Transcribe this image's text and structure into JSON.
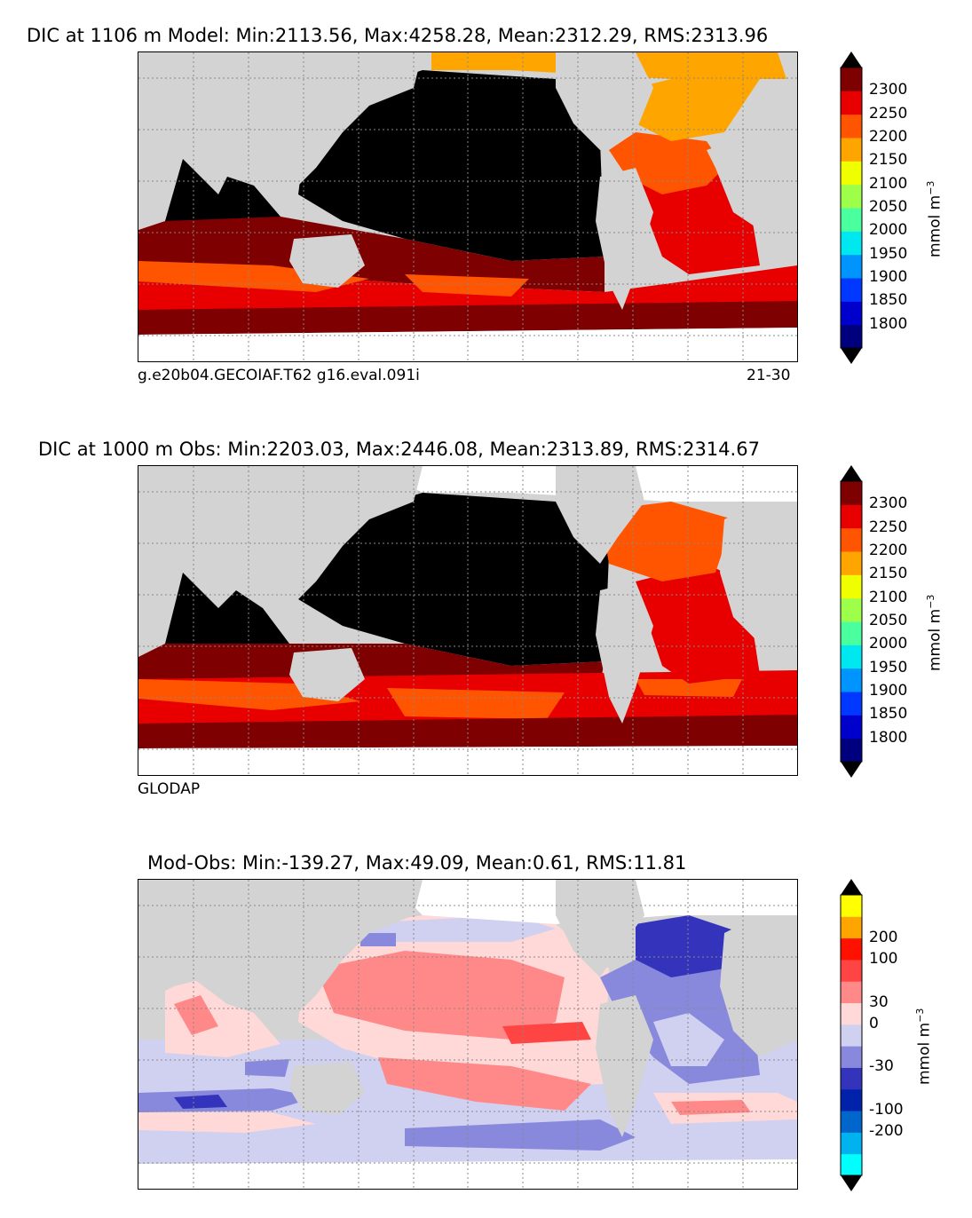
{
  "panels": [
    {
      "id": "model",
      "title": "DIC at 1106 m Model: Min:2113.56, Max:4258.28, Mean:2312.29, RMS:2313.96",
      "left_caption": "g.e20b04.GECOIAF.T62 g16.eval.091i",
      "right_caption": "21-30",
      "units": "mmol m",
      "units_exp": "−3",
      "colorbar": {
        "colors": [
          "#00007f",
          "#0000cc",
          "#0038ff",
          "#0094ff",
          "#00e8ef",
          "#4aff9d",
          "#9dff4a",
          "#efff00",
          "#ffa500",
          "#ff5500",
          "#e80000",
          "#7f0000"
        ],
        "tick_labels": [
          "1800",
          "1850",
          "1900",
          "1950",
          "2000",
          "2050",
          "2100",
          "2150",
          "2200",
          "2250",
          "2300"
        ],
        "over_color": "#000000",
        "under_color": "#000000"
      }
    },
    {
      "id": "obs",
      "title": "DIC at 1000 m Obs: Min:2203.03, Max:2446.08, Mean:2313.89, RMS:2314.67",
      "left_caption": "GLODAP",
      "right_caption": "",
      "units": "mmol m",
      "units_exp": "−3",
      "colorbar": {
        "colors": [
          "#00007f",
          "#0000cc",
          "#0038ff",
          "#0094ff",
          "#00e8ef",
          "#4aff9d",
          "#9dff4a",
          "#efff00",
          "#ffa500",
          "#ff5500",
          "#e80000",
          "#7f0000"
        ],
        "tick_labels": [
          "1800",
          "1850",
          "1900",
          "1950",
          "2000",
          "2050",
          "2100",
          "2150",
          "2200",
          "2250",
          "2300"
        ],
        "over_color": "#000000",
        "under_color": "#000000"
      }
    },
    {
      "id": "diff",
      "title": "Mod-Obs: Min:-139.27, Max:49.09, Mean:0.61, RMS:11.81",
      "left_caption": "",
      "right_caption": "",
      "units": "mmol m",
      "units_exp": "−3",
      "colorbar": {
        "colors": [
          "#00ffff",
          "#00b2ee",
          "#0066cc",
          "#0022aa",
          "#3333bb",
          "#8888dd",
          "#d0d0f0",
          "#ffd8d8",
          "#ff8888",
          "#ff4444",
          "#ff1100",
          "#ffa500",
          "#ffff00"
        ],
        "tick_labels": [
          "-200",
          "-100",
          "-30",
          "0",
          "30",
          "100",
          "200"
        ],
        "over_color": "#000000",
        "under_color": "#000000"
      }
    }
  ],
  "colors": {
    "land": "#d3d3d3",
    "missing": "#ffffff",
    "grid": "#888888"
  }
}
